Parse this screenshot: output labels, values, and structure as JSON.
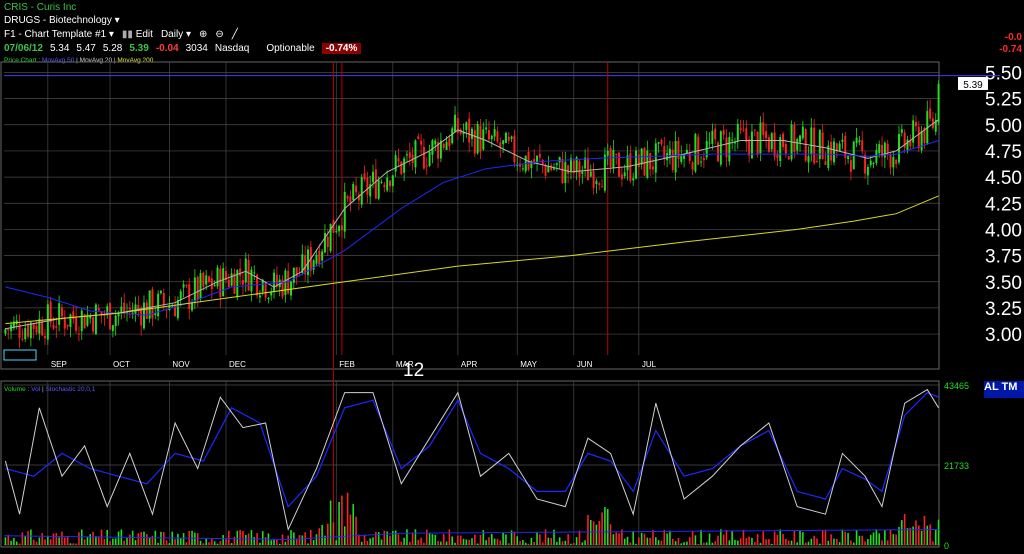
{
  "header": {
    "symbol": "CRIS",
    "name_sep": " - ",
    "company": "Curis Inc",
    "group": "DRUGS - Biotechnology",
    "template": "F1 - Chart Template #1",
    "edit_label": "Edit",
    "period_label": "Daily"
  },
  "quote": {
    "date": "07/06/12",
    "open": "5.34",
    "high": "5.47",
    "low": "5.28",
    "close": "5.39",
    "change": "-0.04",
    "volume": "3034",
    "exchange": "Nasdaq",
    "optionable": "Optionable",
    "pct": "-0.74%"
  },
  "right_edge": {
    "chg": "-0.0",
    "pct": "-0.74"
  },
  "indicators": {
    "price": "Price Chart",
    "ma50": "MovAvg 50",
    "ma20": "MovAvg 20",
    "ma200": "MovAvg 200",
    "volume": "Volume",
    "vol_sub": "Vol",
    "stoch": "Stochastic 20,0,1"
  },
  "colors": {
    "up": "#1fe01f",
    "down": "#ff2020",
    "ma20": "#b4b4b4",
    "ma50": "#1e28ff",
    "ma200": "#d8d820",
    "grid": "#4a4a4a",
    "hline": "#3c3cff"
  },
  "overlay_text": "12",
  "blue_strip_text": "AL TM",
  "chart_data": [
    {
      "type": "candlestick",
      "title": "CRIS - Curis Inc",
      "ylim": [
        2.8,
        5.6
      ],
      "y_ticks": [
        "5.50",
        "5.25",
        "5.00",
        "4.75",
        "4.50",
        "4.25",
        "4.00",
        "3.75",
        "3.50",
        "3.25",
        "3.00"
      ],
      "months": [
        "SEP",
        "OCT",
        "NOV",
        "DEC",
        "FEB",
        "MAR",
        "APR",
        "MAY",
        "JUN",
        "JUL"
      ],
      "last_price_label": "5.39",
      "last_close": 5.39,
      "horizontal_line": 5.47,
      "ma_series": [
        {
          "name": "MovAvg 20",
          "points": [
            [
              0,
              3.05
            ],
            [
              20,
              3.15
            ],
            [
              40,
              3.2
            ],
            [
              60,
              3.3
            ],
            [
              75,
              3.5
            ],
            [
              85,
              3.6
            ],
            [
              95,
              3.45
            ],
            [
              105,
              3.6
            ],
            [
              120,
              4.2
            ],
            [
              135,
              4.55
            ],
            [
              150,
              4.75
            ],
            [
              160,
              4.95
            ],
            [
              170,
              4.85
            ],
            [
              185,
              4.65
            ],
            [
              200,
              4.55
            ],
            [
              220,
              4.6
            ],
            [
              240,
              4.72
            ],
            [
              260,
              4.85
            ],
            [
              275,
              4.85
            ],
            [
              290,
              4.78
            ],
            [
              305,
              4.68
            ],
            [
              315,
              4.75
            ],
            [
              325,
              4.95
            ],
            [
              330,
              5.05
            ]
          ]
        },
        {
          "name": "MovAvg 50",
          "points": [
            [
              0,
              3.45
            ],
            [
              15,
              3.35
            ],
            [
              30,
              3.22
            ],
            [
              50,
              3.18
            ],
            [
              65,
              3.3
            ],
            [
              80,
              3.45
            ],
            [
              100,
              3.5
            ],
            [
              120,
              3.8
            ],
            [
              140,
              4.2
            ],
            [
              155,
              4.45
            ],
            [
              170,
              4.58
            ],
            [
              190,
              4.65
            ],
            [
              210,
              4.68
            ],
            [
              230,
              4.7
            ],
            [
              250,
              4.72
            ],
            [
              270,
              4.72
            ],
            [
              290,
              4.72
            ],
            [
              305,
              4.7
            ],
            [
              315,
              4.72
            ],
            [
              330,
              4.85
            ]
          ]
        },
        {
          "name": "MovAvg 200",
          "points": [
            [
              0,
              3.1
            ],
            [
              40,
              3.2
            ],
            [
              80,
              3.35
            ],
            [
              120,
              3.5
            ],
            [
              160,
              3.65
            ],
            [
              200,
              3.75
            ],
            [
              240,
              3.88
            ],
            [
              280,
              4.0
            ],
            [
              300,
              4.08
            ],
            [
              315,
              4.15
            ],
            [
              330,
              4.32
            ]
          ]
        }
      ]
    },
    {
      "type": "bar",
      "title": "Volume",
      "ylim": [
        0,
        43465
      ],
      "y_ticks": [
        "43465",
        "21733",
        "0"
      ],
      "stochastic_name": "Stochastic 20,0,1",
      "stochastic_points": [
        [
          0,
          50
        ],
        [
          5,
          15
        ],
        [
          12,
          85
        ],
        [
          20,
          40
        ],
        [
          28,
          60
        ],
        [
          36,
          20
        ],
        [
          44,
          55
        ],
        [
          52,
          15
        ],
        [
          60,
          75
        ],
        [
          68,
          45
        ],
        [
          76,
          92
        ],
        [
          84,
          72
        ],
        [
          92,
          75
        ],
        [
          100,
          5
        ],
        [
          110,
          45
        ],
        [
          120,
          95
        ],
        [
          130,
          95
        ],
        [
          140,
          35
        ],
        [
          150,
          65
        ],
        [
          160,
          95
        ],
        [
          168,
          40
        ],
        [
          178,
          55
        ],
        [
          188,
          25
        ],
        [
          198,
          20
        ],
        [
          206,
          65
        ],
        [
          214,
          55
        ],
        [
          222,
          15
        ],
        [
          230,
          88
        ],
        [
          240,
          25
        ],
        [
          250,
          40
        ],
        [
          260,
          60
        ],
        [
          270,
          75
        ],
        [
          280,
          20
        ],
        [
          290,
          15
        ],
        [
          296,
          55
        ],
        [
          304,
          40
        ],
        [
          310,
          20
        ],
        [
          318,
          88
        ],
        [
          326,
          97
        ],
        [
          330,
          85
        ]
      ],
      "stochastic_smooth_points": [
        [
          0,
          45
        ],
        [
          10,
          40
        ],
        [
          20,
          55
        ],
        [
          30,
          45
        ],
        [
          40,
          40
        ],
        [
          50,
          35
        ],
        [
          60,
          55
        ],
        [
          70,
          50
        ],
        [
          80,
          85
        ],
        [
          90,
          75
        ],
        [
          100,
          20
        ],
        [
          110,
          40
        ],
        [
          120,
          85
        ],
        [
          130,
          90
        ],
        [
          140,
          45
        ],
        [
          150,
          60
        ],
        [
          160,
          90
        ],
        [
          168,
          55
        ],
        [
          178,
          45
        ],
        [
          188,
          30
        ],
        [
          198,
          30
        ],
        [
          206,
          55
        ],
        [
          214,
          50
        ],
        [
          222,
          30
        ],
        [
          230,
          70
        ],
        [
          240,
          40
        ],
        [
          250,
          45
        ],
        [
          260,
          60
        ],
        [
          270,
          70
        ],
        [
          280,
          30
        ],
        [
          290,
          25
        ],
        [
          296,
          45
        ],
        [
          304,
          38
        ],
        [
          310,
          30
        ],
        [
          318,
          80
        ],
        [
          326,
          95
        ],
        [
          330,
          92
        ]
      ]
    }
  ]
}
